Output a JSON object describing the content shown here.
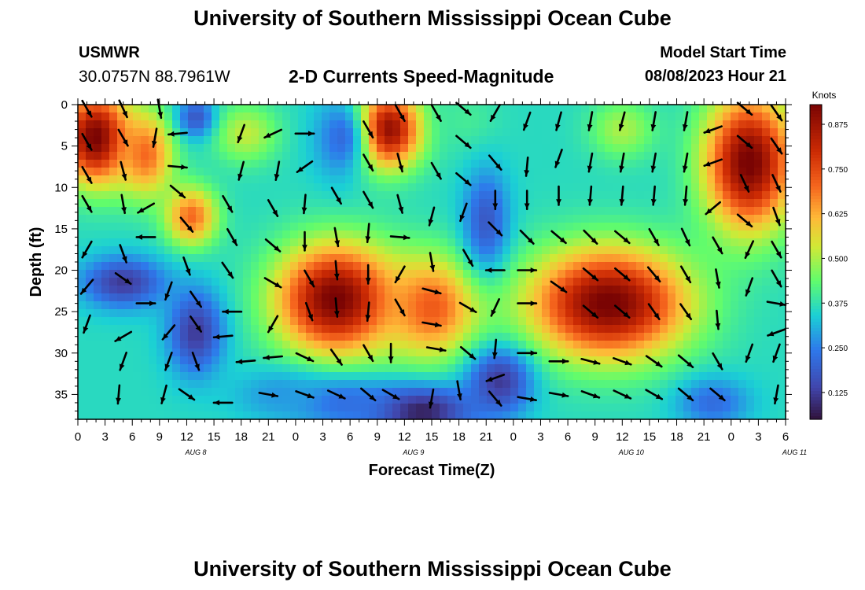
{
  "header": {
    "title": "University of Southern Mississippi Ocean Cube",
    "station_id": "USMWR",
    "coordinates": "30.0757N  88.7961W",
    "subtitle": "2-D Currents Speed-Magnitude",
    "model_start_label": "Model Start Time",
    "model_start_value": "08/08/2023 Hour 21"
  },
  "footer": {
    "title": "University of Southern Mississippi Ocean Cube"
  },
  "chart_data": {
    "type": "heatmap",
    "xlabel": "Forecast Time(Z)",
    "ylabel": "Depth (ft)",
    "colorbar_label": "Knots",
    "x_tick_labels": [
      "0",
      "3",
      "6",
      "9",
      "12",
      "15",
      "18",
      "21",
      "0",
      "3",
      "6",
      "9",
      "12",
      "15",
      "18",
      "21",
      "0",
      "3",
      "6",
      "9",
      "12",
      "15",
      "18",
      "21",
      "0",
      "3",
      "6"
    ],
    "date_labels": [
      {
        "label": "AUG 8",
        "hour_index": 13
      },
      {
        "label": "AUG 9",
        "hour_index": 37
      },
      {
        "label": "AUG 10",
        "hour_index": 61
      },
      {
        "label": "AUG 11",
        "hour_index": 79
      }
    ],
    "x_range_hours": [
      0,
      78
    ],
    "y_tick_labels": [
      "0",
      "5",
      "10",
      "15",
      "20",
      "25",
      "30",
      "35"
    ],
    "y_range_ft": [
      0,
      38
    ],
    "colorbar_ticks": [
      "0.125",
      "0.250",
      "0.375",
      "0.500",
      "0.625",
      "0.750",
      "0.875"
    ],
    "colorbar_range": [
      0.05,
      0.93
    ],
    "speed_blobs": [
      {
        "x": 2.0,
        "y": 4.0,
        "v": 0.94,
        "sx": 3.8,
        "sy": 5.5
      },
      {
        "x": 7.5,
        "y": 6.0,
        "v": 0.7,
        "sx": 3.0,
        "sy": 5.0
      },
      {
        "x": 12.5,
        "y": 13.5,
        "v": 0.7,
        "sx": 2.8,
        "sy": 3.5
      },
      {
        "x": 18.5,
        "y": 3.5,
        "v": 0.52,
        "sx": 3.5,
        "sy": 3.5
      },
      {
        "x": 34.0,
        "y": 3.0,
        "v": 0.92,
        "sx": 3.8,
        "sy": 4.5
      },
      {
        "x": 28.5,
        "y": 23.5,
        "v": 0.94,
        "sx": 6.5,
        "sy": 6.5
      },
      {
        "x": 39.0,
        "y": 24.5,
        "v": 0.72,
        "sx": 5.0,
        "sy": 6.0
      },
      {
        "x": 58.5,
        "y": 24.0,
        "v": 0.94,
        "sx": 8.5,
        "sy": 6.5
      },
      {
        "x": 60.0,
        "y": 3.0,
        "v": 0.5,
        "sx": 3.5,
        "sy": 3.5
      },
      {
        "x": 74.0,
        "y": 7.0,
        "v": 0.94,
        "sx": 4.8,
        "sy": 8.0
      },
      {
        "x": 43.0,
        "y": 2.0,
        "v": 0.4,
        "sx": 3.5,
        "sy": 4.0
      },
      {
        "x": 5.0,
        "y": 21.5,
        "v": 0.12,
        "sx": 4.5,
        "sy": 3.0
      },
      {
        "x": 13.0,
        "y": 27.5,
        "v": 0.12,
        "sx": 3.0,
        "sy": 5.0
      },
      {
        "x": 13.0,
        "y": 1.5,
        "v": 0.18,
        "sx": 2.0,
        "sy": 2.5
      },
      {
        "x": 37.5,
        "y": 37.0,
        "v": 0.06,
        "sx": 6.0,
        "sy": 3.0
      },
      {
        "x": 46.5,
        "y": 33.5,
        "v": 0.12,
        "sx": 3.5,
        "sy": 4.0
      },
      {
        "x": 45.0,
        "y": 14.0,
        "v": 0.18,
        "sx": 2.5,
        "sy": 6.0
      },
      {
        "x": 29.0,
        "y": 4.0,
        "v": 0.22,
        "sx": 3.0,
        "sy": 5.0
      },
      {
        "x": 29.0,
        "y": 36.0,
        "v": 0.22,
        "sx": 6.0,
        "sy": 3.0
      },
      {
        "x": 70.0,
        "y": 36.0,
        "v": 0.22,
        "sx": 4.0,
        "sy": 3.0
      },
      {
        "x": 22.0,
        "y": 35.0,
        "v": 0.28,
        "sx": 5.0,
        "sy": 3.0
      }
    ],
    "vectors": [
      {
        "x": 1,
        "y": 0.5,
        "a": 60,
        "m": 0.9
      },
      {
        "x": 5,
        "y": 0.5,
        "a": 65,
        "m": 0.9
      },
      {
        "x": 9,
        "y": 0.5,
        "a": 80,
        "m": 0.9
      },
      {
        "x": 1,
        "y": 4.5,
        "a": 60,
        "m": 0.9
      },
      {
        "x": 5,
        "y": 4.0,
        "a": 60,
        "m": 0.9
      },
      {
        "x": 8.5,
        "y": 4.0,
        "a": 100,
        "m": 0.9
      },
      {
        "x": 11,
        "y": 3.5,
        "a": 175,
        "m": 0.9
      },
      {
        "x": 1,
        "y": 8.5,
        "a": 60,
        "m": 0.9
      },
      {
        "x": 5,
        "y": 8.0,
        "a": 75,
        "m": 0.9
      },
      {
        "x": 11,
        "y": 7.5,
        "a": 5,
        "m": 0.9
      },
      {
        "x": 11,
        "y": 10.5,
        "a": 40,
        "m": 0.9
      },
      {
        "x": 1,
        "y": 12.0,
        "a": 60,
        "m": 0.9
      },
      {
        "x": 5,
        "y": 12.0,
        "a": 80,
        "m": 0.9
      },
      {
        "x": 7.5,
        "y": 12.5,
        "a": 150,
        "m": 0.9
      },
      {
        "x": 12,
        "y": 14.5,
        "a": 50,
        "m": 0.9
      },
      {
        "x": 1,
        "y": 17.5,
        "a": 120,
        "m": 0.9
      },
      {
        "x": 5,
        "y": 18.0,
        "a": 70,
        "m": 0.9
      },
      {
        "x": 7.5,
        "y": 16.0,
        "a": 180,
        "m": 0.9
      },
      {
        "x": 12,
        "y": 19.5,
        "a": 70,
        "m": 0.9
      },
      {
        "x": 1,
        "y": 22.0,
        "a": 130,
        "m": 0.9
      },
      {
        "x": 5,
        "y": 21.0,
        "a": 35,
        "m": 0.9
      },
      {
        "x": 7.5,
        "y": 24.0,
        "a": 0,
        "m": 0.9
      },
      {
        "x": 10,
        "y": 22.5,
        "a": 110,
        "m": 0.9
      },
      {
        "x": 13,
        "y": 23.5,
        "a": 55,
        "m": 0.9
      },
      {
        "x": 1,
        "y": 26.5,
        "a": 110,
        "m": 0.9
      },
      {
        "x": 5,
        "y": 28.0,
        "a": 150,
        "m": 0.9
      },
      {
        "x": 10,
        "y": 27.5,
        "a": 130,
        "m": 0.9
      },
      {
        "x": 13,
        "y": 26.5,
        "a": 55,
        "m": 0.9
      },
      {
        "x": 5,
        "y": 31.0,
        "a": 110,
        "m": 0.9
      },
      {
        "x": 10,
        "y": 31.0,
        "a": 110,
        "m": 0.9
      },
      {
        "x": 13,
        "y": 31.0,
        "a": 70,
        "m": 0.9
      },
      {
        "x": 16,
        "y": 28.0,
        "a": 175,
        "m": 0.9
      },
      {
        "x": 4.5,
        "y": 35.0,
        "a": 95,
        "m": 0.9
      },
      {
        "x": 9.5,
        "y": 35.0,
        "a": 105,
        "m": 0.9
      },
      {
        "x": 12,
        "y": 35.0,
        "a": 35,
        "m": 0.9
      },
      {
        "x": 16,
        "y": 36.0,
        "a": 180,
        "m": 0.9
      },
      {
        "x": 18,
        "y": 3.5,
        "a": 110,
        "m": 0.9
      },
      {
        "x": 18,
        "y": 8.0,
        "a": 105,
        "m": 0.9
      },
      {
        "x": 16.5,
        "y": 12.0,
        "a": 60,
        "m": 0.9
      },
      {
        "x": 17,
        "y": 16.0,
        "a": 60,
        "m": 0.9
      },
      {
        "x": 16.5,
        "y": 20.0,
        "a": 55,
        "m": 0.9
      },
      {
        "x": 17,
        "y": 25.0,
        "a": 180,
        "m": 0.9
      },
      {
        "x": 18.5,
        "y": 31.0,
        "a": 175,
        "m": 0.9
      },
      {
        "x": 21.5,
        "y": 3.5,
        "a": 155,
        "m": 0.9
      },
      {
        "x": 22,
        "y": 8.0,
        "a": 100,
        "m": 0.9
      },
      {
        "x": 21.5,
        "y": 12.5,
        "a": 60,
        "m": 0.9
      },
      {
        "x": 21.5,
        "y": 17.0,
        "a": 40,
        "m": 0.9
      },
      {
        "x": 21.5,
        "y": 21.5,
        "a": 30,
        "m": 0.9
      },
      {
        "x": 21.5,
        "y": 26.5,
        "a": 120,
        "m": 0.9
      },
      {
        "x": 21.5,
        "y": 30.5,
        "a": 175,
        "m": 0.9
      },
      {
        "x": 21,
        "y": 35.0,
        "a": 10,
        "m": 0.9
      },
      {
        "x": 25,
        "y": 3.5,
        "a": 0,
        "m": 0.9
      },
      {
        "x": 25,
        "y": 7.5,
        "a": 145,
        "m": 0.9
      },
      {
        "x": 25,
        "y": 12.0,
        "a": 95,
        "m": 0.9
      },
      {
        "x": 25,
        "y": 16.5,
        "a": 90,
        "m": 0.9
      },
      {
        "x": 25.5,
        "y": 21.0,
        "a": 60,
        "m": 0.9
      },
      {
        "x": 25.5,
        "y": 25.0,
        "a": 70,
        "m": 0.9
      },
      {
        "x": 25,
        "y": 30.5,
        "a": 25,
        "m": 0.9
      },
      {
        "x": 25,
        "y": 35.0,
        "a": 20,
        "m": 0.9
      },
      {
        "x": 28.5,
        "y": 11.0,
        "a": 60,
        "m": 0.9
      },
      {
        "x": 28.5,
        "y": 16.0,
        "a": 80,
        "m": 0.9
      },
      {
        "x": 28.5,
        "y": 20.0,
        "a": 85,
        "m": 0.9
      },
      {
        "x": 28.5,
        "y": 24.5,
        "a": 85,
        "m": 0.9
      },
      {
        "x": 28.5,
        "y": 30.5,
        "a": 55,
        "m": 0.9
      },
      {
        "x": 28.5,
        "y": 35.0,
        "a": 25,
        "m": 0.9
      },
      {
        "x": 32,
        "y": 3.0,
        "a": 60,
        "m": 0.9
      },
      {
        "x": 32,
        "y": 7.0,
        "a": 60,
        "m": 0.9
      },
      {
        "x": 32,
        "y": 11.5,
        "a": 60,
        "m": 0.9
      },
      {
        "x": 32,
        "y": 15.5,
        "a": 95,
        "m": 0.9
      },
      {
        "x": 32,
        "y": 20.5,
        "a": 90,
        "m": 0.9
      },
      {
        "x": 32,
        "y": 25.0,
        "a": 95,
        "m": 0.9
      },
      {
        "x": 32,
        "y": 30.0,
        "a": 60,
        "m": 0.9
      },
      {
        "x": 32,
        "y": 35.0,
        "a": 40,
        "m": 0.9
      },
      {
        "x": 35.5,
        "y": 1.0,
        "a": 60,
        "m": 0.9
      },
      {
        "x": 35.5,
        "y": 7.0,
        "a": 75,
        "m": 0.9
      },
      {
        "x": 35.5,
        "y": 12.0,
        "a": 75,
        "m": 0.9
      },
      {
        "x": 35.5,
        "y": 16.0,
        "a": 5,
        "m": 0.9
      },
      {
        "x": 35.5,
        "y": 20.5,
        "a": 120,
        "m": 0.9
      },
      {
        "x": 35.5,
        "y": 24.5,
        "a": 60,
        "m": 0.9
      },
      {
        "x": 34.5,
        "y": 30.0,
        "a": 90,
        "m": 0.9
      },
      {
        "x": 34.5,
        "y": 35.0,
        "a": 30,
        "m": 0.9
      },
      {
        "x": 39.5,
        "y": 1.0,
        "a": 60,
        "m": 0.9
      },
      {
        "x": 39.5,
        "y": 8.0,
        "a": 60,
        "m": 0.9
      },
      {
        "x": 39,
        "y": 13.5,
        "a": 105,
        "m": 0.9
      },
      {
        "x": 39,
        "y": 19.0,
        "a": 80,
        "m": 0.9
      },
      {
        "x": 39,
        "y": 22.5,
        "a": 15,
        "m": 0.9
      },
      {
        "x": 39,
        "y": 26.5,
        "a": 10,
        "m": 0.9
      },
      {
        "x": 39.5,
        "y": 29.5,
        "a": 10,
        "m": 0.9
      },
      {
        "x": 39,
        "y": 35.5,
        "a": 100,
        "m": 0.9
      },
      {
        "x": 42.5,
        "y": 0.5,
        "a": 40,
        "m": 0.9
      },
      {
        "x": 42.5,
        "y": 4.5,
        "a": 40,
        "m": 0.9
      },
      {
        "x": 42.5,
        "y": 9.0,
        "a": 40,
        "m": 0.9
      },
      {
        "x": 42.5,
        "y": 13.0,
        "a": 110,
        "m": 0.9
      },
      {
        "x": 43,
        "y": 18.5,
        "a": 60,
        "m": 0.9
      },
      {
        "x": 43,
        "y": 24.5,
        "a": 30,
        "m": 0.9
      },
      {
        "x": 43,
        "y": 30.0,
        "a": 40,
        "m": 0.9
      },
      {
        "x": 42,
        "y": 34.5,
        "a": 80,
        "m": 0.9
      },
      {
        "x": 46,
        "y": 1.0,
        "a": 120,
        "m": 0.9
      },
      {
        "x": 46,
        "y": 7.0,
        "a": 50,
        "m": 0.9
      },
      {
        "x": 46,
        "y": 11.5,
        "a": 90,
        "m": 0.9
      },
      {
        "x": 46,
        "y": 15.0,
        "a": 45,
        "m": 0.9
      },
      {
        "x": 46,
        "y": 20.0,
        "a": 180,
        "m": 0.9
      },
      {
        "x": 46,
        "y": 24.5,
        "a": 115,
        "m": 0.9
      },
      {
        "x": 46,
        "y": 29.5,
        "a": 95,
        "m": 0.9
      },
      {
        "x": 46,
        "y": 33.0,
        "a": 160,
        "m": 0.9
      },
      {
        "x": 46,
        "y": 35.5,
        "a": 50,
        "m": 0.9
      },
      {
        "x": 49.5,
        "y": 2.0,
        "a": 110,
        "m": 0.9
      },
      {
        "x": 49.5,
        "y": 7.5,
        "a": 95,
        "m": 0.9
      },
      {
        "x": 49.5,
        "y": 11.5,
        "a": 90,
        "m": 0.9
      },
      {
        "x": 49.5,
        "y": 16.0,
        "a": 45,
        "m": 0.9
      },
      {
        "x": 49.5,
        "y": 20.0,
        "a": 0,
        "m": 0.9
      },
      {
        "x": 49.5,
        "y": 24.0,
        "a": 0,
        "m": 0.9
      },
      {
        "x": 49.5,
        "y": 30.0,
        "a": 0,
        "m": 0.9
      },
      {
        "x": 49.5,
        "y": 35.5,
        "a": 10,
        "m": 0.9
      },
      {
        "x": 53,
        "y": 2.0,
        "a": 105,
        "m": 0.9
      },
      {
        "x": 53,
        "y": 6.5,
        "a": 110,
        "m": 0.9
      },
      {
        "x": 53,
        "y": 11.0,
        "a": 90,
        "m": 0.9
      },
      {
        "x": 53,
        "y": 16.0,
        "a": 40,
        "m": 0.9
      },
      {
        "x": 53,
        "y": 22.0,
        "a": 35,
        "m": 0.9
      },
      {
        "x": 53,
        "y": 31.0,
        "a": 0,
        "m": 0.9
      },
      {
        "x": 53,
        "y": 35.0,
        "a": 10,
        "m": 0.9
      },
      {
        "x": 56.5,
        "y": 2.0,
        "a": 100,
        "m": 0.9
      },
      {
        "x": 56.5,
        "y": 7.0,
        "a": 100,
        "m": 0.9
      },
      {
        "x": 56.5,
        "y": 11.0,
        "a": 95,
        "m": 0.9
      },
      {
        "x": 56.5,
        "y": 16.0,
        "a": 45,
        "m": 0.9
      },
      {
        "x": 56.5,
        "y": 20.5,
        "a": 40,
        "m": 0.9
      },
      {
        "x": 56.5,
        "y": 25.0,
        "a": 40,
        "m": 0.9
      },
      {
        "x": 56.5,
        "y": 31.0,
        "a": 15,
        "m": 0.9
      },
      {
        "x": 56.5,
        "y": 35.0,
        "a": 20,
        "m": 0.9
      },
      {
        "x": 60,
        "y": 2.0,
        "a": 105,
        "m": 0.9
      },
      {
        "x": 60,
        "y": 7.0,
        "a": 100,
        "m": 0.9
      },
      {
        "x": 60,
        "y": 11.0,
        "a": 95,
        "m": 0.9
      },
      {
        "x": 60,
        "y": 16.0,
        "a": 40,
        "m": 0.9
      },
      {
        "x": 60,
        "y": 20.5,
        "a": 40,
        "m": 0.9
      },
      {
        "x": 60,
        "y": 25.0,
        "a": 40,
        "m": 0.9
      },
      {
        "x": 60,
        "y": 31.0,
        "a": 20,
        "m": 0.9
      },
      {
        "x": 60,
        "y": 35.0,
        "a": 25,
        "m": 0.9
      },
      {
        "x": 63.5,
        "y": 2.0,
        "a": 100,
        "m": 0.9
      },
      {
        "x": 63.5,
        "y": 7.0,
        "a": 100,
        "m": 0.9
      },
      {
        "x": 63.5,
        "y": 11.0,
        "a": 95,
        "m": 0.9
      },
      {
        "x": 63.5,
        "y": 16.0,
        "a": 60,
        "m": 0.9
      },
      {
        "x": 63.5,
        "y": 20.5,
        "a": 50,
        "m": 0.9
      },
      {
        "x": 63.5,
        "y": 25.0,
        "a": 55,
        "m": 0.9
      },
      {
        "x": 63.5,
        "y": 31.0,
        "a": 35,
        "m": 0.9
      },
      {
        "x": 63.5,
        "y": 35.0,
        "a": 30,
        "m": 0.9
      },
      {
        "x": 67,
        "y": 2.0,
        "a": 100,
        "m": 0.9
      },
      {
        "x": 67,
        "y": 7.0,
        "a": 100,
        "m": 0.9
      },
      {
        "x": 67,
        "y": 11.0,
        "a": 95,
        "m": 0.9
      },
      {
        "x": 67,
        "y": 16.0,
        "a": 65,
        "m": 0.9
      },
      {
        "x": 67,
        "y": 20.5,
        "a": 60,
        "m": 0.9
      },
      {
        "x": 67,
        "y": 25.0,
        "a": 55,
        "m": 0.9
      },
      {
        "x": 67,
        "y": 31.0,
        "a": 40,
        "m": 0.9
      },
      {
        "x": 67,
        "y": 35.0,
        "a": 40,
        "m": 0.9
      },
      {
        "x": 70,
        "y": 3.0,
        "a": 160,
        "m": 0.9
      },
      {
        "x": 70,
        "y": 7.0,
        "a": 160,
        "m": 0.9
      },
      {
        "x": 70,
        "y": 12.5,
        "a": 140,
        "m": 0.9
      },
      {
        "x": 70.5,
        "y": 17.0,
        "a": 60,
        "m": 0.9
      },
      {
        "x": 70.5,
        "y": 21.0,
        "a": 80,
        "m": 0.9
      },
      {
        "x": 70.5,
        "y": 26.0,
        "a": 85,
        "m": 0.9
      },
      {
        "x": 70.5,
        "y": 31.0,
        "a": 60,
        "m": 0.9
      },
      {
        "x": 70.5,
        "y": 35.0,
        "a": 40,
        "m": 0.9
      },
      {
        "x": 73.5,
        "y": 0.5,
        "a": 40,
        "m": 0.9
      },
      {
        "x": 73.5,
        "y": 4.5,
        "a": 40,
        "m": 0.9
      },
      {
        "x": 73.5,
        "y": 9.5,
        "a": 65,
        "m": 0.9
      },
      {
        "x": 73.5,
        "y": 14.0,
        "a": 40,
        "m": 0.9
      },
      {
        "x": 74,
        "y": 17.5,
        "a": 115,
        "m": 0.9
      },
      {
        "x": 74,
        "y": 22.0,
        "a": 110,
        "m": 0.9
      },
      {
        "x": 74,
        "y": 30.0,
        "a": 110,
        "m": 0.9
      },
      {
        "x": 77,
        "y": 1.0,
        "a": 55,
        "m": 0.9
      },
      {
        "x": 77,
        "y": 5.0,
        "a": 55,
        "m": 0.9
      },
      {
        "x": 77,
        "y": 9.5,
        "a": 65,
        "m": 0.9
      },
      {
        "x": 77,
        "y": 13.5,
        "a": 70,
        "m": 0.9
      },
      {
        "x": 77,
        "y": 17.5,
        "a": 60,
        "m": 0.9
      },
      {
        "x": 77,
        "y": 21.0,
        "a": 60,
        "m": 0.9
      },
      {
        "x": 77,
        "y": 24.0,
        "a": 10,
        "m": 0.9
      },
      {
        "x": 77,
        "y": 27.5,
        "a": 160,
        "m": 0.9
      },
      {
        "x": 77,
        "y": 30.0,
        "a": 110,
        "m": 0.9
      },
      {
        "x": 77,
        "y": 35.0,
        "a": 100,
        "m": 0.9
      }
    ]
  }
}
